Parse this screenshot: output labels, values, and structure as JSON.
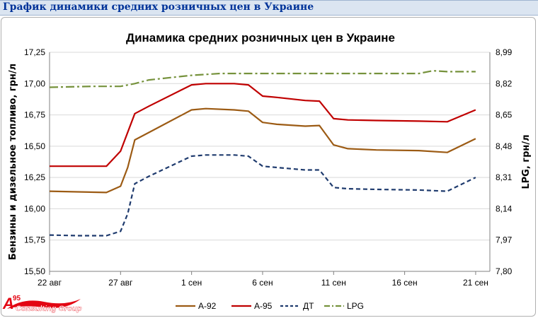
{
  "page": {
    "header_title": "График динамики средних розничных цен в Украине",
    "logo": {
      "mark": "A",
      "superscript": "95",
      "text": "Consulting Group",
      "color": "#e30613"
    }
  },
  "chart_data": {
    "type": "line",
    "title": "Динамика средних розничных цен в Украине",
    "ylabel": "Бензины и дизельное топливо, грн/л",
    "y2label": "LPG, грн/л",
    "x_ticks": [
      "22 авг",
      "27 авг",
      "1 сен",
      "6 сен",
      "11 сен",
      "16 сен",
      "21 сен"
    ],
    "x_tick_days": [
      0,
      5,
      10,
      15,
      20,
      25,
      30
    ],
    "xlim": [
      0,
      31
    ],
    "ylim": [
      15.5,
      17.25
    ],
    "y_ticks": [
      "15,50",
      "15,75",
      "16,00",
      "16,25",
      "16,50",
      "16,75",
      "17,00",
      "17,25"
    ],
    "y2lim": [
      7.8,
      8.99
    ],
    "y2_ticks": [
      "7,80",
      "7,97",
      "8,14",
      "8,31",
      "8,48",
      "8,65",
      "8,82",
      "8,99"
    ],
    "grid": "horizontal",
    "legend_position": "bottom",
    "series": [
      {
        "name": "A-92",
        "axis": "left",
        "color": "#9c5b14",
        "dash": "solid",
        "points": [
          [
            0,
            16.14
          ],
          [
            2,
            16.135
          ],
          [
            4,
            16.13
          ],
          [
            5,
            16.18
          ],
          [
            5.5,
            16.33
          ],
          [
            6,
            16.55
          ],
          [
            7,
            16.61
          ],
          [
            10,
            16.79
          ],
          [
            11,
            16.8
          ],
          [
            13,
            16.79
          ],
          [
            14,
            16.78
          ],
          [
            15,
            16.69
          ],
          [
            16,
            16.675
          ],
          [
            18,
            16.66
          ],
          [
            19,
            16.665
          ],
          [
            20,
            16.51
          ],
          [
            21,
            16.48
          ],
          [
            23,
            16.47
          ],
          [
            26,
            16.465
          ],
          [
            28,
            16.45
          ],
          [
            30,
            16.56
          ]
        ]
      },
      {
        "name": "А-95",
        "axis": "left",
        "color": "#c00000",
        "dash": "solid",
        "points": [
          [
            0,
            16.34
          ],
          [
            2,
            16.34
          ],
          [
            4,
            16.34
          ],
          [
            5,
            16.46
          ],
          [
            6,
            16.76
          ],
          [
            7,
            16.82
          ],
          [
            10,
            16.99
          ],
          [
            11,
            17.0
          ],
          [
            13,
            17.0
          ],
          [
            14,
            16.99
          ],
          [
            15,
            16.9
          ],
          [
            16,
            16.89
          ],
          [
            18,
            16.865
          ],
          [
            19,
            16.86
          ],
          [
            20,
            16.72
          ],
          [
            21,
            16.71
          ],
          [
            23,
            16.705
          ],
          [
            26,
            16.7
          ],
          [
            28,
            16.695
          ],
          [
            30,
            16.79
          ]
        ]
      },
      {
        "name": "ДТ",
        "axis": "left",
        "color": "#1f3b6e",
        "dash": "dashed",
        "points": [
          [
            0,
            15.79
          ],
          [
            2,
            15.785
          ],
          [
            4,
            15.785
          ],
          [
            5,
            15.82
          ],
          [
            5.5,
            15.96
          ],
          [
            6,
            16.2
          ],
          [
            7,
            16.26
          ],
          [
            10,
            16.42
          ],
          [
            11,
            16.43
          ],
          [
            13,
            16.43
          ],
          [
            14,
            16.42
          ],
          [
            15,
            16.34
          ],
          [
            16,
            16.33
          ],
          [
            18,
            16.31
          ],
          [
            19,
            16.31
          ],
          [
            20,
            16.17
          ],
          [
            21,
            16.16
          ],
          [
            23,
            16.155
          ],
          [
            26,
            16.15
          ],
          [
            28,
            16.14
          ],
          [
            30,
            16.25
          ]
        ]
      },
      {
        "name": "LPG",
        "axis": "right",
        "color": "#76923c",
        "dash": "dashdot",
        "points": [
          [
            0,
            8.8
          ],
          [
            3,
            8.805
          ],
          [
            5,
            8.805
          ],
          [
            6,
            8.82
          ],
          [
            7,
            8.84
          ],
          [
            10,
            8.865
          ],
          [
            12,
            8.875
          ],
          [
            15,
            8.875
          ],
          [
            18,
            8.875
          ],
          [
            19,
            8.875
          ],
          [
            20,
            8.875
          ],
          [
            22,
            8.875
          ],
          [
            25,
            8.875
          ],
          [
            26,
            8.875
          ],
          [
            27,
            8.89
          ],
          [
            28,
            8.885
          ],
          [
            30,
            8.885
          ]
        ]
      }
    ]
  }
}
